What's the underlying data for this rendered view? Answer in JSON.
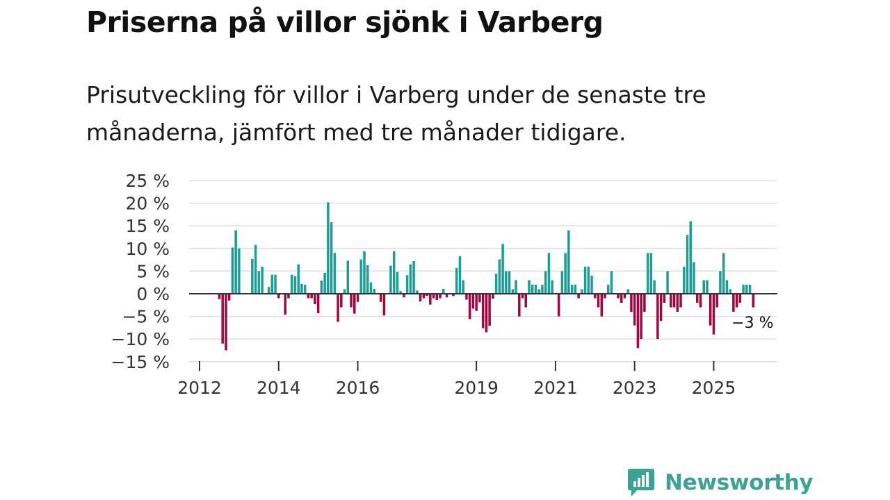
{
  "title": "Priserna på villor sjönk i Varberg",
  "subtitle": "Prisutveckling för villor i Varberg under de senaste tre månaderna, jämfört med tre månader tidigare.",
  "brand": {
    "name": "Newsworthy",
    "color": "#3aa394",
    "icon": "newsworthy-logo-icon"
  },
  "colors": {
    "positive": "#1a9e96",
    "negative": "#a3063f",
    "grid": "#dddddd",
    "baseline": "#333333"
  },
  "chart_data": {
    "type": "bar",
    "title": "Priserna på villor sjönk i Varberg",
    "xlabel": "",
    "ylabel": "",
    "ylim": [
      -15,
      25
    ],
    "y_ticks": [
      25,
      20,
      15,
      10,
      5,
      0,
      -5,
      -10,
      -15
    ],
    "y_tick_labels": [
      "25 %",
      "20 %",
      "15 %",
      "10 %",
      "5 %",
      "0 %",
      "−5 %",
      "−10 %",
      "−15 %"
    ],
    "x_ticks": [
      2012,
      2014,
      2016,
      2019,
      2021,
      2023,
      2025
    ],
    "x_tick_labels": [
      "2012",
      "2014",
      "2016",
      "2019",
      "2021",
      "2023",
      "2025"
    ],
    "start": {
      "year": 2012,
      "month": 1
    },
    "last_value_label": "−3 %",
    "values": [
      null,
      null,
      null,
      null,
      null,
      null,
      -1.2,
      -11,
      -12.5,
      -1.5,
      10.2,
      14,
      10,
      null,
      null,
      null,
      7.7,
      10.8,
      5.0,
      6.0,
      null,
      1.5,
      4.2,
      4.2,
      -1.0,
      null,
      -4.6,
      -1.0,
      4.2,
      3.9,
      6.5,
      2.2,
      2.0,
      -1.0,
      -1.0,
      -2.3,
      -4.3,
      2.9,
      4.6,
      20.2,
      15.8,
      9.0,
      -6.2,
      -3.0,
      1.0,
      7.3,
      -3.0,
      -4.4,
      -1.8,
      7.6,
      9.4,
      6.3,
      2.5,
      1.1,
      null,
      -1.8,
      -4.8,
      null,
      6.2,
      9.4,
      4.8,
      0.6,
      -0.8,
      4.1,
      6.5,
      7.2,
      0.7,
      -1.7,
      -1.0,
      -0.5,
      -2.4,
      -1.0,
      -1.4,
      -1.0,
      1.1,
      -0.8,
      null,
      -0.5,
      5.7,
      8.3,
      3.0,
      -1.3,
      -5.6,
      -3.3,
      -3.8,
      -1.9,
      -7.6,
      -8.5,
      -7.1,
      -1.1,
      4.4,
      7.6,
      11.0,
      5.0,
      5.0,
      1.0,
      3.0,
      -5.0,
      -1.0,
      -3.0,
      3.0,
      2.0,
      2.0,
      1.0,
      2.0,
      5.0,
      9.0,
      3.0,
      null,
      -5.0,
      5.0,
      9.0,
      14.0,
      2.0,
      2.0,
      -1.0,
      1.0,
      6.0,
      6.0,
      4.0,
      -1.0,
      -3.0,
      -5.0,
      -1.0,
      2.0,
      5.0,
      null,
      -1.0,
      -2.0,
      -1.0,
      1.0,
      -4.0,
      -7.0,
      -12.0,
      -10.0,
      -4.0,
      9.0,
      9.0,
      3.0,
      -10.0,
      -6.0,
      -2.0,
      5.0,
      -3.0,
      -3.0,
      -4.0,
      -3.0,
      6.0,
      13.0,
      16.0,
      7.0,
      -2.0,
      -3.0,
      3.0,
      3.0,
      -7.0,
      -9.0,
      -3.0,
      5.0,
      9.0,
      3.0,
      1.0,
      -4.0,
      -3.0,
      -2.0,
      2.0,
      2.0,
      2.0,
      -3.0
    ]
  }
}
